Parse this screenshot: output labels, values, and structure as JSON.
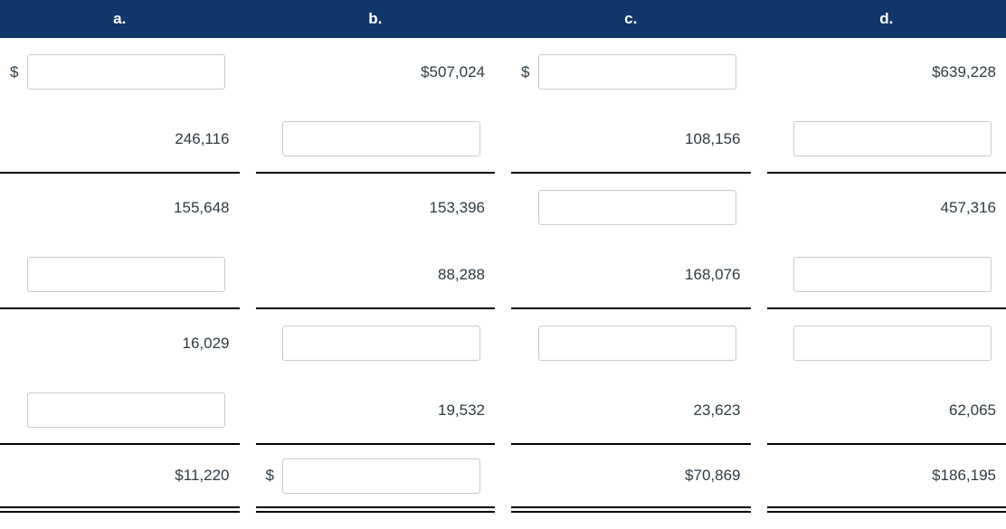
{
  "colors": {
    "header_background": "#103769",
    "header_text": "#ffffff",
    "body_text": "#2d3b45",
    "rule": "#000000",
    "input_border": "#c7ccd1"
  },
  "header": {
    "columns": [
      {
        "label": "a."
      },
      {
        "label": "b."
      },
      {
        "label": "c."
      },
      {
        "label": "d."
      }
    ]
  },
  "table": {
    "rows": [
      {
        "rule_after": "none",
        "cells": [
          {
            "type": "input",
            "prefix": "$",
            "value": ""
          },
          {
            "type": "text",
            "text": "$507,024"
          },
          {
            "type": "input",
            "prefix": "$",
            "value": ""
          },
          {
            "type": "text",
            "text": "$639,228"
          }
        ]
      },
      {
        "rule_after": "single",
        "cells": [
          {
            "type": "text",
            "text": "246,116"
          },
          {
            "type": "input",
            "value": ""
          },
          {
            "type": "text",
            "text": "108,156"
          },
          {
            "type": "input",
            "value": ""
          }
        ]
      },
      {
        "rule_after": "none",
        "cells": [
          {
            "type": "text",
            "text": "155,648"
          },
          {
            "type": "text",
            "text": "153,396"
          },
          {
            "type": "input",
            "value": ""
          },
          {
            "type": "text",
            "text": "457,316"
          }
        ]
      },
      {
        "rule_after": "single",
        "cells": [
          {
            "type": "input",
            "value": ""
          },
          {
            "type": "text",
            "text": "88,288"
          },
          {
            "type": "text",
            "text": "168,076"
          },
          {
            "type": "input",
            "value": ""
          }
        ]
      },
      {
        "rule_after": "none",
        "cells": [
          {
            "type": "text",
            "text": "16,029"
          },
          {
            "type": "input",
            "value": ""
          },
          {
            "type": "input",
            "value": ""
          },
          {
            "type": "input",
            "value": ""
          }
        ]
      },
      {
        "rule_after": "single",
        "cells": [
          {
            "type": "input",
            "value": ""
          },
          {
            "type": "text",
            "text": "19,532"
          },
          {
            "type": "text",
            "text": "23,623"
          },
          {
            "type": "text",
            "text": "62,065"
          }
        ]
      },
      {
        "rule_after": "double",
        "cells": [
          {
            "type": "text",
            "text": "$11,220"
          },
          {
            "type": "input",
            "prefix": "$",
            "value": ""
          },
          {
            "type": "text",
            "text": "$70,869"
          },
          {
            "type": "text",
            "text": "$186,195"
          }
        ]
      }
    ]
  }
}
